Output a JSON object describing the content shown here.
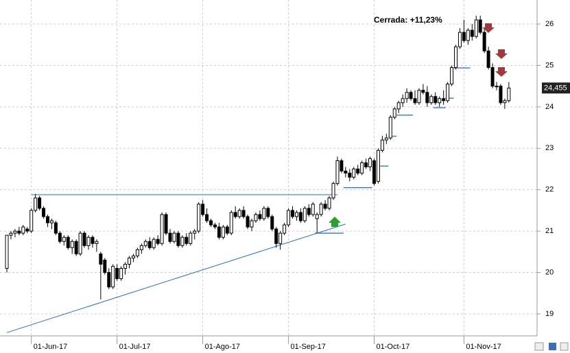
{
  "chart_data": {
    "type": "candlestick",
    "annotation": "Cerrada: +11,23%",
    "ylim": [
      18.47,
      26.58
    ],
    "yticks": [
      19,
      20,
      21,
      22,
      23,
      24,
      25,
      26
    ],
    "grid": true,
    "up_color": "#ffffff",
    "down_color": "#000000",
    "line_color": "#1f6fd1",
    "annotation_color": "#1010e0",
    "last_value": 24.455,
    "last_value_label": "24,455",
    "categories": [
      null,
      null,
      null,
      null,
      null,
      null,
      "01-Jun-17",
      null,
      null,
      null,
      null,
      null,
      null,
      null,
      null,
      null,
      null,
      null,
      null,
      null,
      null,
      null,
      null,
      null,
      null,
      null,
      null,
      "01-Jul-17",
      null,
      null,
      null,
      null,
      null,
      null,
      null,
      null,
      null,
      null,
      null,
      null,
      null,
      null,
      null,
      null,
      null,
      null,
      null,
      null,
      "01-Ago-17",
      null,
      null,
      null,
      null,
      null,
      null,
      null,
      null,
      null,
      null,
      null,
      null,
      null,
      null,
      null,
      null,
      null,
      null,
      null,
      null,
      "01-Sep-17",
      null,
      null,
      null,
      null,
      null,
      null,
      null,
      null,
      null,
      null,
      null,
      null,
      null,
      null,
      null,
      null,
      null,
      null,
      null,
      null,
      "01-Oct-17",
      null,
      null,
      null,
      null,
      null,
      null,
      null,
      null,
      null,
      null,
      null,
      null,
      null,
      null,
      null,
      null,
      null,
      null,
      null,
      null,
      null,
      "01-Nov-17",
      null,
      null,
      null,
      null,
      null,
      null,
      null,
      null,
      null,
      null,
      null
    ],
    "ohlc": [
      [
        20.1,
        20.9,
        20.0,
        20.9
      ],
      [
        20.9,
        21.0,
        20.8,
        20.95
      ],
      [
        20.95,
        21.05,
        20.85,
        21.0
      ],
      [
        21.0,
        21.1,
        20.9,
        20.95
      ],
      [
        20.95,
        21.15,
        20.9,
        21.1
      ],
      [
        21.05,
        21.1,
        20.95,
        21.0
      ],
      [
        21.0,
        21.55,
        20.95,
        21.5
      ],
      [
        21.5,
        21.9,
        21.45,
        21.8
      ],
      [
        21.8,
        21.85,
        21.5,
        21.55
      ],
      [
        21.55,
        21.6,
        21.3,
        21.35
      ],
      [
        21.35,
        21.4,
        21.1,
        21.2
      ],
      [
        21.2,
        21.3,
        21.05,
        21.25
      ],
      [
        21.2,
        21.25,
        20.9,
        20.95
      ],
      [
        20.95,
        21.0,
        20.7,
        20.75
      ],
      [
        20.75,
        20.9,
        20.65,
        20.85
      ],
      [
        20.85,
        20.9,
        20.55,
        20.6
      ],
      [
        20.6,
        20.8,
        20.45,
        20.75
      ],
      [
        20.75,
        20.8,
        20.4,
        20.45
      ],
      [
        20.45,
        21.0,
        20.4,
        20.95
      ],
      [
        20.95,
        21.0,
        20.6,
        20.65
      ],
      [
        20.65,
        20.9,
        20.55,
        20.85
      ],
      [
        20.85,
        20.9,
        20.6,
        20.7
      ],
      [
        20.7,
        20.8,
        20.5,
        20.75
      ],
      [
        20.45,
        20.5,
        19.35,
        20.2
      ],
      [
        20.3,
        20.35,
        19.95,
        20.0
      ],
      [
        20.0,
        20.1,
        19.6,
        19.65
      ],
      [
        19.65,
        20.2,
        19.6,
        20.15
      ],
      [
        20.1,
        20.2,
        19.8,
        19.85
      ],
      [
        19.85,
        20.15,
        19.8,
        20.1
      ],
      [
        20.1,
        20.25,
        19.95,
        20.2
      ],
      [
        20.2,
        20.4,
        20.1,
        20.35
      ],
      [
        20.35,
        20.45,
        20.25,
        20.4
      ],
      [
        20.4,
        20.6,
        20.35,
        20.55
      ],
      [
        20.55,
        20.7,
        20.45,
        20.65
      ],
      [
        20.65,
        20.8,
        20.6,
        20.75
      ],
      [
        20.75,
        20.85,
        20.55,
        20.6
      ],
      [
        20.6,
        20.85,
        20.55,
        20.8
      ],
      [
        20.8,
        20.9,
        20.65,
        20.7
      ],
      [
        20.7,
        21.45,
        20.65,
        21.4
      ],
      [
        21.4,
        21.45,
        20.9,
        20.95
      ],
      [
        20.95,
        21.05,
        20.7,
        20.75
      ],
      [
        20.75,
        21.0,
        20.7,
        20.95
      ],
      [
        20.95,
        21.0,
        20.6,
        20.65
      ],
      [
        20.65,
        20.9,
        20.6,
        20.85
      ],
      [
        20.85,
        20.95,
        20.65,
        20.7
      ],
      [
        20.7,
        21.0,
        20.65,
        20.95
      ],
      [
        20.95,
        21.05,
        20.8,
        21.0
      ],
      [
        21.0,
        21.7,
        20.95,
        21.65
      ],
      [
        21.65,
        21.75,
        21.35,
        21.4
      ],
      [
        21.4,
        21.55,
        21.2,
        21.25
      ],
      [
        21.25,
        21.3,
        21.1,
        21.15
      ],
      [
        21.15,
        21.2,
        21.05,
        21.1
      ],
      [
        21.1,
        21.2,
        20.8,
        20.85
      ],
      [
        20.85,
        21.15,
        20.8,
        21.1
      ],
      [
        21.1,
        21.15,
        20.9,
        20.95
      ],
      [
        20.95,
        21.5,
        20.9,
        21.45
      ],
      [
        21.45,
        21.6,
        21.3,
        21.35
      ],
      [
        21.35,
        21.55,
        21.3,
        21.5
      ],
      [
        21.5,
        21.6,
        21.3,
        21.35
      ],
      [
        21.35,
        21.4,
        21.05,
        21.1
      ],
      [
        21.1,
        21.3,
        21.0,
        21.25
      ],
      [
        21.25,
        21.45,
        21.2,
        21.4
      ],
      [
        21.4,
        21.5,
        21.25,
        21.3
      ],
      [
        21.3,
        21.6,
        21.25,
        21.55
      ],
      [
        21.55,
        21.6,
        21.3,
        21.35
      ],
      [
        21.35,
        21.4,
        21.0,
        21.05
      ],
      [
        21.05,
        21.1,
        20.6,
        20.7
      ],
      [
        20.7,
        21.0,
        20.55,
        20.95
      ],
      [
        20.95,
        21.2,
        20.9,
        21.15
      ],
      [
        21.15,
        21.55,
        21.1,
        21.5
      ],
      [
        21.5,
        21.6,
        21.3,
        21.35
      ],
      [
        21.35,
        21.5,
        21.25,
        21.45
      ],
      [
        21.45,
        21.55,
        21.2,
        21.25
      ],
      [
        21.25,
        21.6,
        21.2,
        21.55
      ],
      [
        21.55,
        21.65,
        21.35,
        21.4
      ],
      [
        21.4,
        21.7,
        21.35,
        21.65
      ],
      [
        21.3,
        21.45,
        20.95,
        21.4
      ],
      [
        21.4,
        21.7,
        21.35,
        21.65
      ],
      [
        21.65,
        21.75,
        21.5,
        21.55
      ],
      [
        21.55,
        21.85,
        21.5,
        21.8
      ],
      [
        21.8,
        22.2,
        21.75,
        22.15
      ],
      [
        22.15,
        22.8,
        22.1,
        22.7
      ],
      [
        22.7,
        22.75,
        22.4,
        22.45
      ],
      [
        22.45,
        22.55,
        22.3,
        22.4
      ],
      [
        22.4,
        22.5,
        22.2,
        22.3
      ],
      [
        22.3,
        22.55,
        22.25,
        22.5
      ],
      [
        22.5,
        22.6,
        22.35,
        22.4
      ],
      [
        22.4,
        22.7,
        22.35,
        22.65
      ],
      [
        22.65,
        22.75,
        22.5,
        22.55
      ],
      [
        22.55,
        22.8,
        22.45,
        22.75
      ],
      [
        22.7,
        22.75,
        22.1,
        22.15
      ],
      [
        22.2,
        23.0,
        22.15,
        22.95
      ],
      [
        22.95,
        23.3,
        22.9,
        23.2
      ],
      [
        23.2,
        23.35,
        23.1,
        23.25
      ],
      [
        23.25,
        23.8,
        23.2,
        23.75
      ],
      [
        23.75,
        24.0,
        23.7,
        23.95
      ],
      [
        23.95,
        24.15,
        23.85,
        24.1
      ],
      [
        24.1,
        24.3,
        24.0,
        24.2
      ],
      [
        24.2,
        24.45,
        24.1,
        24.35
      ],
      [
        24.35,
        24.4,
        24.15,
        24.2
      ],
      [
        24.2,
        24.4,
        24.05,
        24.1
      ],
      [
        24.1,
        24.45,
        24.05,
        24.4
      ],
      [
        24.4,
        24.55,
        24.3,
        24.35
      ],
      [
        24.35,
        24.5,
        24.0,
        24.1
      ],
      [
        24.1,
        24.3,
        24.05,
        24.25
      ],
      [
        24.25,
        24.35,
        24.05,
        24.1
      ],
      [
        24.1,
        24.25,
        24.0,
        24.2
      ],
      [
        24.2,
        24.4,
        24.05,
        24.15
      ],
      [
        24.15,
        24.6,
        24.1,
        24.55
      ],
      [
        24.55,
        25.0,
        24.5,
        24.95
      ],
      [
        24.95,
        25.5,
        24.9,
        25.45
      ],
      [
        25.45,
        25.9,
        25.4,
        25.8
      ],
      [
        25.8,
        26.1,
        25.55,
        25.6
      ],
      [
        25.6,
        25.9,
        25.5,
        25.85
      ],
      [
        25.85,
        26.0,
        25.6,
        25.7
      ],
      [
        25.7,
        26.2,
        25.65,
        26.1
      ],
      [
        26.1,
        26.2,
        25.75,
        25.8
      ],
      [
        25.8,
        25.9,
        25.3,
        25.35
      ],
      [
        25.35,
        25.45,
        24.9,
        24.95
      ],
      [
        24.95,
        25.05,
        24.45,
        24.5
      ],
      [
        24.5,
        24.6,
        24.4,
        24.5
      ],
      [
        24.5,
        24.55,
        24.05,
        24.1
      ],
      [
        24.1,
        24.2,
        23.95,
        24.15
      ],
      [
        24.15,
        24.6,
        24.1,
        24.455
      ]
    ],
    "stops": [
      null,
      null,
      null,
      null,
      null,
      null,
      null,
      null,
      null,
      null,
      null,
      null,
      null,
      null,
      null,
      null,
      null,
      null,
      null,
      null,
      null,
      null,
      null,
      null,
      null,
      null,
      null,
      null,
      null,
      null,
      null,
      null,
      null,
      null,
      null,
      null,
      null,
      null,
      null,
      null,
      null,
      null,
      null,
      null,
      null,
      null,
      null,
      null,
      null,
      null,
      null,
      null,
      null,
      null,
      null,
      null,
      null,
      null,
      null,
      null,
      null,
      null,
      null,
      null,
      null,
      null,
      null,
      null,
      null,
      null,
      null,
      null,
      null,
      null,
      null,
      null,
      20.95,
      20.95,
      20.95,
      20.95,
      20.95,
      20.95,
      20.95,
      22.05,
      22.05,
      22.05,
      22.05,
      22.05,
      22.05,
      22.05,
      null,
      null,
      22.57,
      22.57,
      23.29,
      23.29,
      23.8,
      23.8,
      23.8,
      23.8,
      null,
      null,
      null,
      null,
      null,
      23.98,
      23.98,
      23.98,
      24.21,
      24.21,
      24.94,
      24.94,
      24.94,
      24.94,
      null,
      null,
      null,
      null,
      null,
      null,
      null,
      null,
      null,
      null
    ],
    "trendlines": [
      {
        "from": [
          0,
          18.55
        ],
        "to": [
          83,
          21.17
        ]
      },
      {
        "from": [
          6,
          21.88
        ],
        "to": [
          81,
          21.88
        ]
      }
    ]
  }
}
